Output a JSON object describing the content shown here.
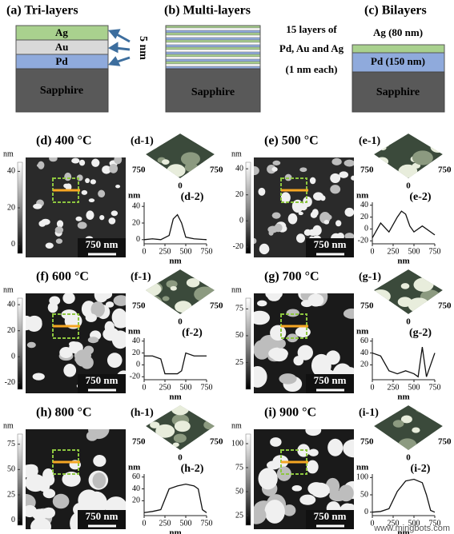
{
  "top": {
    "a": {
      "label": "(a) Tri-layers",
      "layers": [
        "Ag",
        "Au",
        "Pd",
        "Sapphire"
      ],
      "thickness": "5 nm"
    },
    "b": {
      "label": "(b) Multi-layers",
      "note": [
        "15 layers of",
        "Pd, Au and Ag",
        "(1 nm each)"
      ],
      "substrate": "Sapphire"
    },
    "c": {
      "label": "(c) Bilayers",
      "top_note": "Ag (80 nm)",
      "layers": [
        "Pd (150 nm)",
        "Sapphire"
      ]
    }
  },
  "panels": [
    {
      "title": "(d) 400 °C",
      "unit": "nm",
      "clim": [
        -5,
        45
      ],
      "cticks": [
        0,
        20,
        40
      ],
      "scale": "750 nm",
      "inset": "(d-1)",
      "inset_ticks": [
        "750",
        "750",
        "0"
      ],
      "profile_label": "(d-2)",
      "profile_unit": "nm",
      "x_unit": "nm",
      "xlim": [
        0,
        750
      ],
      "xticks": [
        0,
        250,
        500,
        750
      ],
      "ylim": [
        -5,
        45
      ],
      "yticks": [
        0,
        20,
        40
      ],
      "x": [
        0,
        100,
        200,
        300,
        350,
        400,
        450,
        500,
        600,
        750
      ],
      "y": [
        0,
        1,
        0,
        5,
        25,
        30,
        20,
        3,
        1,
        0
      ]
    },
    {
      "title": "(e) 500 °C",
      "unit": "nm",
      "clim": [
        -25,
        45
      ],
      "cticks": [
        -20,
        0,
        20,
        40
      ],
      "scale": "750 nm",
      "inset": "(e-1)",
      "inset_ticks": [
        "750",
        "750",
        "0"
      ],
      "profile_label": "(e-2)",
      "profile_unit": "nm",
      "x_unit": "nm",
      "xlim": [
        0,
        750
      ],
      "xticks": [
        0,
        250,
        500,
        750
      ],
      "ylim": [
        -25,
        45
      ],
      "yticks": [
        -20,
        0,
        20,
        40
      ],
      "x": [
        0,
        100,
        200,
        300,
        350,
        400,
        450,
        500,
        600,
        750
      ],
      "y": [
        -15,
        10,
        -5,
        20,
        30,
        25,
        5,
        -5,
        5,
        -10
      ]
    },
    {
      "title": "(f) 600 °C",
      "unit": "nm",
      "clim": [
        -25,
        45
      ],
      "cticks": [
        -20,
        0,
        20,
        40
      ],
      "scale": "750 nm",
      "inset": "(f-1)",
      "inset_ticks": [
        "750",
        "750",
        "0"
      ],
      "profile_label": "(f-2)",
      "profile_unit": "nm",
      "x_unit": "nm",
      "xlim": [
        0,
        750
      ],
      "xticks": [
        0,
        250,
        500,
        750
      ],
      "ylim": [
        -25,
        45
      ],
      "yticks": [
        -20,
        0,
        20,
        40
      ],
      "x": [
        0,
        100,
        200,
        250,
        300,
        400,
        450,
        500,
        600,
        750
      ],
      "y": [
        15,
        15,
        10,
        -15,
        -15,
        -15,
        -10,
        20,
        15,
        15
      ]
    },
    {
      "title": "(g) 700 °C",
      "unit": "nm",
      "clim": [
        0,
        85
      ],
      "cticks": [
        25,
        50,
        75
      ],
      "scale": "750 nm",
      "inset": "(g-1)",
      "inset_ticks": [
        "750",
        "750",
        "0"
      ],
      "profile_label": "(g-2)",
      "profile_unit": "nm",
      "x_unit": "nm",
      "xlim": [
        0,
        750
      ],
      "xticks": [
        0,
        250,
        500,
        750
      ],
      "ylim": [
        -5,
        65
      ],
      "yticks": [
        20,
        40,
        60
      ],
      "x": [
        0,
        100,
        200,
        300,
        400,
        500,
        550,
        600,
        650,
        750
      ],
      "y": [
        40,
        35,
        10,
        5,
        10,
        5,
        0,
        50,
        0,
        40
      ]
    },
    {
      "title": "(h) 800 °C",
      "unit": "nm",
      "clim": [
        -5,
        85
      ],
      "cticks": [
        0,
        25,
        50,
        75
      ],
      "scale": "750 nm",
      "inset": "(h-1)",
      "inset_ticks": [
        "750",
        "750",
        "0"
      ],
      "profile_label": "(h-2)",
      "profile_unit": "nm",
      "x_unit": "nm",
      "xlim": [
        0,
        750
      ],
      "xticks": [
        0,
        250,
        500,
        750
      ],
      "ylim": [
        -5,
        65
      ],
      "yticks": [
        20,
        40,
        60
      ],
      "x": [
        0,
        100,
        200,
        300,
        400,
        500,
        600,
        650,
        700,
        750
      ],
      "y": [
        0,
        2,
        5,
        40,
        45,
        48,
        45,
        40,
        5,
        0
      ]
    },
    {
      "title": "(i) 900 °C",
      "unit": "nm",
      "clim": [
        15,
        110
      ],
      "cticks": [
        25,
        50,
        75,
        100
      ],
      "scale": "750 nm",
      "inset": "(i-1)",
      "inset_ticks": [
        "750",
        "750",
        "0"
      ],
      "profile_label": "(i-2)",
      "profile_unit": "nm",
      "x_unit": "nm",
      "xlim": [
        0,
        750
      ],
      "xticks": [
        0,
        250,
        500,
        750
      ],
      "ylim": [
        -10,
        110
      ],
      "yticks": [
        0,
        50,
        100
      ],
      "x": [
        0,
        100,
        200,
        300,
        400,
        500,
        600,
        650,
        700,
        750
      ],
      "y": [
        0,
        2,
        10,
        60,
        90,
        95,
        85,
        50,
        5,
        0
      ]
    }
  ],
  "watermark": "www.mingbots.com"
}
